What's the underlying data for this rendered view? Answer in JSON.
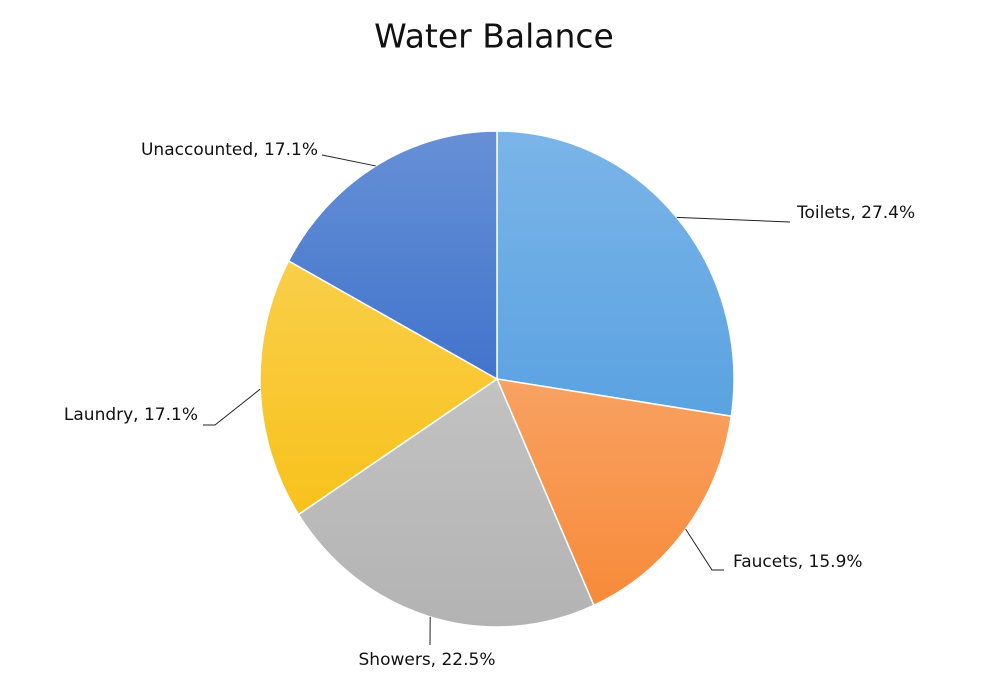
{
  "chart_data": {
    "type": "pie",
    "title": "Water Balance",
    "categories": [
      "Toilets",
      "Faucets",
      "Showers",
      "Laundry",
      "Unaccounted"
    ],
    "values": [
      27.4,
      15.9,
      22.5,
      17.1,
      17.1
    ],
    "value_labels": [
      "Toilets, 27.4%",
      "Faucets, 15.9%",
      "Showers, 22.5%",
      "Laundry, 17.1%",
      "Unaccounted, 17.1%"
    ],
    "colors": [
      "#5aa2e2",
      "#f78a3a",
      "#b3b3b3",
      "#f8c21c",
      "#4174cc"
    ]
  }
}
